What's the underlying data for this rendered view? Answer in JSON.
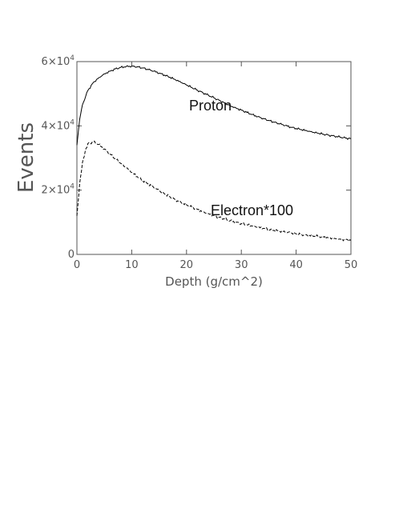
{
  "chart_data": {
    "type": "line",
    "xlabel": "Depth (g/cm^2)",
    "ylabel": "Events",
    "xlim": [
      0,
      50
    ],
    "ylim": [
      0,
      60000
    ],
    "x_ticks": [
      {
        "value": 0,
        "label": "0"
      },
      {
        "value": 10,
        "label": "10"
      },
      {
        "value": 20,
        "label": "20"
      },
      {
        "value": 30,
        "label": "30"
      },
      {
        "value": 40,
        "label": "40"
      },
      {
        "value": 50,
        "label": "50"
      }
    ],
    "y_ticks": [
      {
        "value": 0,
        "mantissa": "0",
        "exponent": ""
      },
      {
        "value": 20000,
        "mantissa": "2×10",
        "exponent": "4"
      },
      {
        "value": 40000,
        "mantissa": "4×10",
        "exponent": "4"
      },
      {
        "value": 60000,
        "mantissa": "6×10",
        "exponent": "4"
      }
    ],
    "grid": false,
    "series": [
      {
        "name": "Proton",
        "style": "solid",
        "color": "#000000",
        "x": [
          0,
          0.5,
          1,
          2,
          3,
          4,
          5,
          6,
          7,
          8,
          9,
          10,
          11,
          12,
          13,
          14,
          15,
          16,
          17,
          18,
          19,
          20,
          21,
          22,
          23,
          24,
          25,
          26,
          27,
          28,
          29,
          30,
          31,
          32,
          33,
          34,
          35,
          36,
          37,
          38,
          39,
          40,
          41,
          42,
          43,
          44,
          45,
          46,
          47,
          48,
          49,
          50
        ],
        "y": [
          34000,
          42000,
          46500,
          51000,
          53500,
          55000,
          56200,
          57000,
          57700,
          58200,
          58500,
          58600,
          58400,
          58000,
          57500,
          57000,
          56400,
          55800,
          55100,
          54300,
          53500,
          52700,
          51900,
          51100,
          50300,
          49500,
          48700,
          47900,
          47100,
          46300,
          45600,
          44900,
          44200,
          43500,
          42900,
          42300,
          41700,
          41100,
          40600,
          40100,
          39600,
          39200,
          38800,
          38400,
          38000,
          37700,
          37400,
          37100,
          36800,
          36500,
          36200,
          36000
        ]
      },
      {
        "name": "Electron*100",
        "style": "dashed",
        "color": "#000000",
        "x": [
          0,
          0.5,
          1,
          1.5,
          2,
          3,
          4,
          5,
          6,
          7,
          8,
          9,
          10,
          11,
          12,
          13,
          14,
          15,
          16,
          17,
          18,
          19,
          20,
          21,
          22,
          23,
          24,
          25,
          26,
          27,
          28,
          29,
          30,
          31,
          32,
          33,
          34,
          35,
          36,
          37,
          38,
          39,
          40,
          41,
          42,
          43,
          44,
          45,
          46,
          47,
          48,
          49,
          50
        ],
        "y": [
          12000,
          22000,
          28500,
          32000,
          34500,
          35000,
          34200,
          32800,
          31300,
          29800,
          28300,
          26900,
          25500,
          24200,
          23000,
          21900,
          20800,
          19800,
          18800,
          17900,
          17000,
          16200,
          15400,
          14700,
          14000,
          13300,
          12700,
          12100,
          11500,
          11000,
          10500,
          10000,
          9600,
          9200,
          8800,
          8400,
          8100,
          7800,
          7500,
          7200,
          6900,
          6700,
          6400,
          6200,
          6000,
          5800,
          5600,
          5400,
          5200,
          5000,
          4800,
          4600,
          4400
        ]
      }
    ]
  }
}
